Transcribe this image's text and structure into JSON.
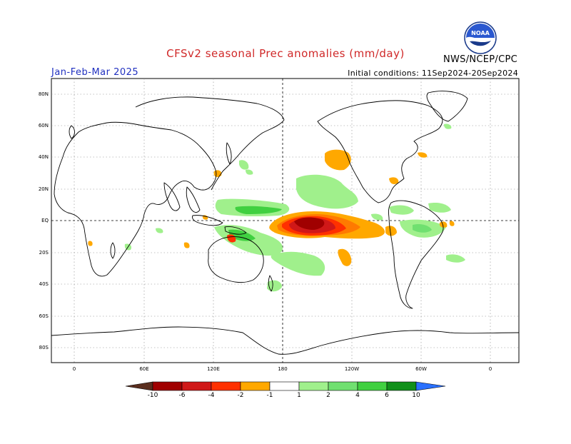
{
  "title": "CFSv2 seasonal Prec anomalies (mm/day)",
  "period": "Jan-Feb-Mar 2025",
  "initial_conditions": "Initial conditions: 11Sep2024-20Sep2024",
  "agency": "NWS/NCEP/CPC",
  "logo_text": "NOAA",
  "colors": {
    "title": "#d02828",
    "period": "#2030c0",
    "dry": [
      "#5a2e1e",
      "#a00000",
      "#d01818",
      "#ff3000",
      "#ff7a00",
      "#ffa800"
    ],
    "wet": [
      "#a0f08c",
      "#70e070",
      "#40d040",
      "#20a820",
      "#10901a",
      "#2a70ff"
    ]
  },
  "map": {
    "lat_labels": [
      "80N",
      "60N",
      "40N",
      "20N",
      "EQ",
      "20S",
      "40S",
      "60S",
      "80S"
    ],
    "lon_labels": [
      "0",
      "60E",
      "120E",
      "180",
      "120W",
      "60W",
      "0"
    ]
  },
  "colorbar": {
    "labels": [
      "-10",
      "-6",
      "-4",
      "-2",
      "-1",
      "1",
      "2",
      "4",
      "6",
      "10"
    ]
  }
}
